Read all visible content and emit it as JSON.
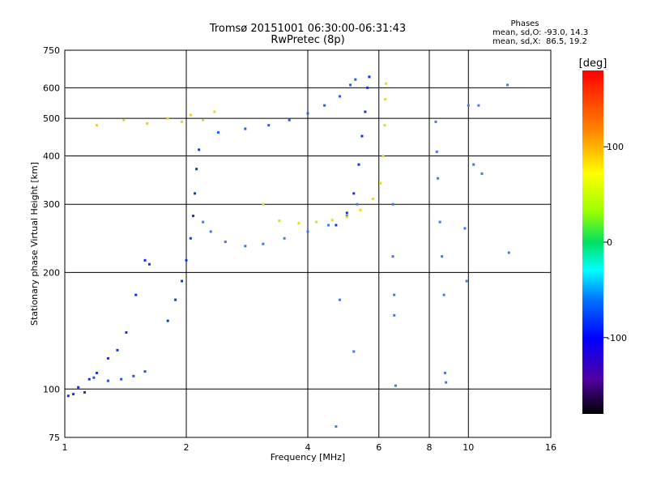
{
  "chart_data": {
    "type": "scatter",
    "title": "Tromsø 20151001 06:30:00-06:31:43",
    "subtitle": "RwPretec (8p)",
    "stats": {
      "heading": "Phases",
      "line_o": "mean, sd,O: -93.0, 14.3",
      "line_x": "mean, sd,X:  86.5, 19.2"
    },
    "xlabel": "Frequency [MHz]",
    "ylabel": "Stationary phase Virtual Height [km]",
    "x_scale": "log2",
    "y_scale": "log",
    "xlim": [
      1,
      16
    ],
    "ylim": [
      75,
      750
    ],
    "x_ticks": [
      1,
      2,
      4,
      6,
      8,
      10,
      16
    ],
    "x_tick_labels": [
      "1",
      "2",
      "4",
      "6",
      "8",
      "10",
      "16"
    ],
    "y_ticks": [
      75,
      100,
      200,
      300,
      400,
      500,
      600,
      750
    ],
    "y_tick_labels": [
      "75",
      "100",
      "200",
      "300",
      "400",
      "500",
      "600",
      "750"
    ],
    "grid": true,
    "colorbar": {
      "label": "[deg]",
      "range": [
        -180,
        180
      ],
      "ticks": [
        100,
        0,
        -100
      ],
      "tick_labels": [
        "100",
        "0",
        "-100"
      ]
    },
    "series": [
      {
        "values": [
          [
            1.02,
            96
          ],
          [
            1.05,
            97
          ],
          [
            1.08,
            101
          ],
          [
            1.12,
            98
          ],
          [
            1.15,
            106
          ],
          [
            1.2,
            110
          ],
          [
            1.28,
            120
          ],
          [
            1.35,
            126
          ],
          [
            1.42,
            140
          ],
          [
            1.5,
            175
          ],
          [
            1.58,
            215
          ],
          [
            1.62,
            210
          ]
        ]
      },
      {
        "values": [
          [
            1.18,
            107
          ],
          [
            1.28,
            105
          ],
          [
            1.38,
            106
          ],
          [
            1.48,
            108
          ],
          [
            1.58,
            111
          ]
        ]
      },
      {
        "values": [
          [
            1.8,
            150
          ],
          [
            1.88,
            170
          ],
          [
            1.95,
            190
          ],
          [
            2.0,
            215
          ],
          [
            2.05,
            245
          ],
          [
            2.08,
            280
          ],
          [
            2.1,
            320
          ],
          [
            2.12,
            370
          ],
          [
            2.15,
            415
          ]
        ]
      },
      {
        "values": [
          [
            2.2,
            270
          ],
          [
            2.3,
            255
          ],
          [
            2.5,
            240
          ],
          [
            2.8,
            234
          ],
          [
            3.1,
            237
          ],
          [
            3.5,
            245
          ],
          [
            4.0,
            255
          ],
          [
            4.5,
            265
          ],
          [
            5.0,
            280
          ],
          [
            5.3,
            300
          ]
        ]
      },
      {
        "values": [
          [
            2.4,
            460
          ],
          [
            2.8,
            470
          ],
          [
            3.2,
            480
          ],
          [
            3.6,
            495
          ],
          [
            4.0,
            515
          ],
          [
            4.4,
            540
          ],
          [
            4.8,
            570
          ],
          [
            5.1,
            610
          ],
          [
            5.25,
            630
          ]
        ]
      },
      {
        "values": [
          [
            4.7,
            265
          ],
          [
            5.0,
            285
          ],
          [
            5.2,
            320
          ],
          [
            5.35,
            380
          ],
          [
            5.45,
            450
          ],
          [
            5.55,
            520
          ],
          [
            5.62,
            600
          ],
          [
            5.68,
            640
          ]
        ]
      },
      {
        "values": [
          [
            3.1,
            300
          ],
          [
            3.4,
            272
          ],
          [
            3.8,
            268
          ],
          [
            4.2,
            270
          ],
          [
            4.6,
            273
          ],
          [
            5.0,
            278
          ],
          [
            5.4,
            290
          ],
          [
            5.8,
            310
          ],
          [
            6.05,
            340
          ],
          [
            6.15,
            400
          ],
          [
            6.2,
            480
          ],
          [
            6.22,
            560
          ],
          [
            6.25,
            615
          ]
        ]
      },
      {
        "values": [
          [
            1.2,
            480
          ],
          [
            1.4,
            495
          ],
          [
            1.6,
            485
          ],
          [
            1.8,
            500
          ],
          [
            1.95,
            490
          ],
          [
            2.05,
            510
          ],
          [
            2.2,
            495
          ],
          [
            2.35,
            520
          ]
        ]
      },
      {
        "values": [
          [
            6.5,
            300
          ],
          [
            6.5,
            220
          ],
          [
            6.55,
            155
          ],
          [
            6.6,
            102
          ],
          [
            8.3,
            490
          ],
          [
            8.35,
            410
          ],
          [
            8.4,
            350
          ],
          [
            8.5,
            270
          ],
          [
            8.6,
            220
          ],
          [
            8.7,
            175
          ],
          [
            8.75,
            110
          ],
          [
            8.8,
            104
          ],
          [
            9.8,
            260
          ],
          [
            9.9,
            190
          ],
          [
            10,
            540
          ],
          [
            10.3,
            380
          ],
          [
            10.6,
            540
          ],
          [
            10.8,
            360
          ],
          [
            12.5,
            610
          ],
          [
            12.6,
            225
          ],
          [
            4.7,
            80
          ],
          [
            4.8,
            170
          ],
          [
            5.2,
            125
          ],
          [
            6.55,
            175
          ]
        ]
      }
    ]
  }
}
